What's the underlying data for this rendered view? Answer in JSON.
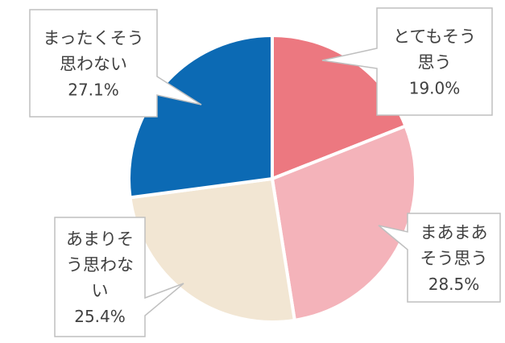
{
  "chart_data": {
    "type": "pie",
    "start_angle_deg": 0,
    "direction": "clockwise",
    "slices": [
      {
        "label_lines": [
          "とてもそう",
          "思う"
        ],
        "percent_label": "19.0%",
        "value": 19.0,
        "color": "#ec7880"
      },
      {
        "label_lines": [
          "まあまあ",
          "そう思う"
        ],
        "percent_label": "28.5%",
        "value": 28.5,
        "color": "#f4b3ba"
      },
      {
        "label_lines": [
          "あまりそ",
          "う思わな",
          "い"
        ],
        "percent_label": "25.4%",
        "value": 25.4,
        "color": "#f2e6d3"
      },
      {
        "label_lines": [
          "まったくそう",
          "思わない"
        ],
        "percent_label": "27.1%",
        "value": 27.1,
        "color": "#0c6ab4"
      }
    ]
  }
}
